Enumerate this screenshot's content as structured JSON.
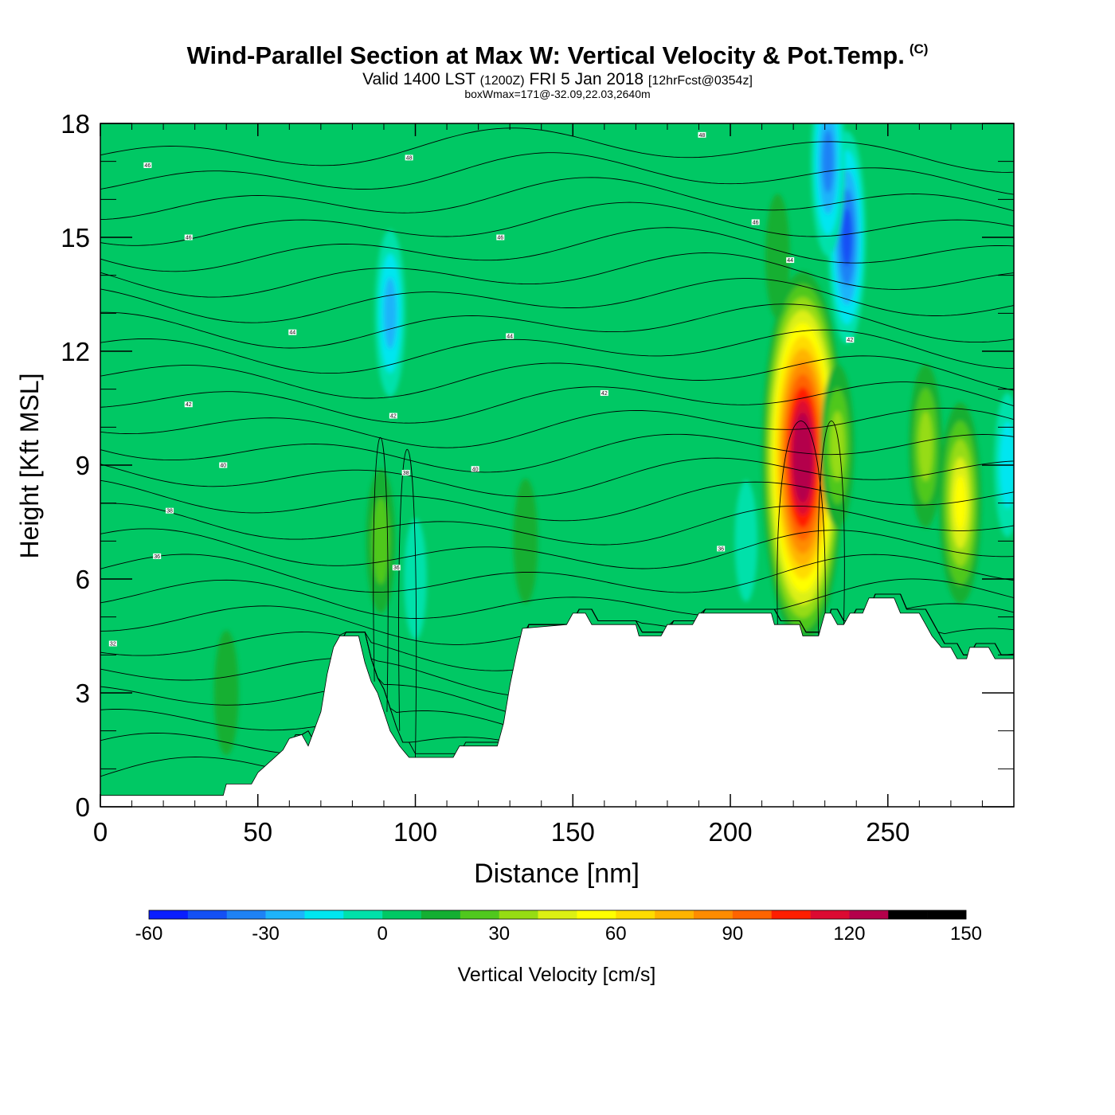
{
  "title": {
    "main": "Wind-Parallel Section at Max W: Vertical Velocity & Pot.Temp.",
    "copyright": "(C)",
    "valid_prefix": "Valid 1400 LST",
    "valid_z": "(1200Z)",
    "valid_date": "FRI 5 Jan 2018",
    "forecast": "[12hrFcst@0354z]",
    "box_wmax": "boxWmax=171@-32.09,22.03,2640m"
  },
  "chart_data": {
    "type": "heatmap",
    "xlabel": "Distance [nm]",
    "ylabel": "Height [Kft MSL]",
    "xlim": [
      0,
      290
    ],
    "ylim": [
      0,
      18
    ],
    "x_ticks": [
      "0",
      "50",
      "100",
      "150",
      "200",
      "250"
    ],
    "y_ticks": [
      "0",
      "3",
      "6",
      "9",
      "12",
      "15",
      "18"
    ],
    "colorbar": {
      "label": "Vertical Velocity [cm/s]",
      "min": -60,
      "max": 150,
      "step": 10,
      "tick_labels": [
        "-60",
        "-30",
        "0",
        "30",
        "60",
        "90",
        "120",
        "150"
      ],
      "colors": [
        "#0a1eff",
        "#1450f5",
        "#1e82f5",
        "#1eb4fa",
        "#00e6f0",
        "#00e1aa",
        "#00c864",
        "#14af32",
        "#50c81e",
        "#96dc14",
        "#dcf014",
        "#ffff00",
        "#ffdc00",
        "#ffb400",
        "#ff8c00",
        "#ff6400",
        "#ff1e00",
        "#dc0a32",
        "#b4004b"
      ]
    },
    "background_value": 5,
    "features": [
      {
        "kind": "updraft",
        "x": 223,
        "y": 9.2,
        "w_max": 150,
        "note": "max core"
      },
      {
        "kind": "updraft",
        "x": 89,
        "y": 7.0,
        "w_max": 30
      },
      {
        "kind": "updraft",
        "x": 273,
        "y": 8.0,
        "w_max": 60
      },
      {
        "kind": "updraft",
        "x": 234,
        "y": 9.5,
        "w_max": 40
      },
      {
        "kind": "updraft",
        "x": 262,
        "y": 9.5,
        "w_max": 40
      },
      {
        "kind": "updraft",
        "x": 215,
        "y": 14.5,
        "w_max": 20
      },
      {
        "kind": "updraft",
        "x": 135,
        "y": 7.0,
        "w_max": 20
      },
      {
        "kind": "updraft",
        "x": 40,
        "y": 3.0,
        "w_max": 20
      },
      {
        "kind": "downdraft",
        "x": 237,
        "y": 15.0,
        "w_max": -50
      },
      {
        "kind": "downdraft",
        "x": 231,
        "y": 17.0,
        "w_max": -40
      },
      {
        "kind": "downdraft",
        "x": 92,
        "y": 13.0,
        "w_max": -25
      },
      {
        "kind": "downdraft",
        "x": 100,
        "y": 6.0,
        "w_max": -10
      },
      {
        "kind": "downdraft",
        "x": 288,
        "y": 9.0,
        "w_max": -20
      },
      {
        "kind": "downdraft",
        "x": 205,
        "y": 7.0,
        "w_max": -10
      }
    ],
    "terrain": [
      [
        0,
        0.3
      ],
      [
        39,
        0.3
      ],
      [
        40,
        0.6
      ],
      [
        48,
        0.6
      ],
      [
        50,
        0.9
      ],
      [
        54,
        1.2
      ],
      [
        58,
        1.5
      ],
      [
        60,
        1.8
      ],
      [
        64,
        1.9
      ],
      [
        66,
        1.6
      ],
      [
        70,
        2.5
      ],
      [
        72,
        3.5
      ],
      [
        74,
        4.2
      ],
      [
        76,
        4.5
      ],
      [
        82,
        4.5
      ],
      [
        84,
        3.8
      ],
      [
        86,
        3.3
      ],
      [
        88,
        3.0
      ],
      [
        90,
        2.5
      ],
      [
        92,
        2.0
      ],
      [
        95,
        1.6
      ],
      [
        98,
        1.3
      ],
      [
        112,
        1.3
      ],
      [
        114,
        1.6
      ],
      [
        126,
        1.6
      ],
      [
        128,
        2.2
      ],
      [
        130,
        3.2
      ],
      [
        132,
        4.0
      ],
      [
        134,
        4.7
      ],
      [
        148,
        4.8
      ],
      [
        150,
        5.1
      ],
      [
        154,
        5.1
      ],
      [
        156,
        4.8
      ],
      [
        170,
        4.8
      ],
      [
        171,
        4.5
      ],
      [
        178,
        4.5
      ],
      [
        180,
        4.8
      ],
      [
        188,
        4.8
      ],
      [
        190,
        5.1
      ],
      [
        213,
        5.1
      ],
      [
        214,
        4.8
      ],
      [
        222,
        4.8
      ],
      [
        223,
        4.5
      ],
      [
        228,
        4.5
      ],
      [
        230,
        5.1
      ],
      [
        232,
        5.1
      ],
      [
        234,
        4.8
      ],
      [
        236,
        4.8
      ],
      [
        238,
        5.1
      ],
      [
        242,
        5.1
      ],
      [
        244,
        5.5
      ],
      [
        252,
        5.5
      ],
      [
        254,
        5.1
      ],
      [
        260,
        5.1
      ],
      [
        262,
        4.8
      ],
      [
        264,
        4.5
      ],
      [
        267,
        4.2
      ],
      [
        270,
        4.2
      ],
      [
        272,
        3.9
      ],
      [
        275,
        3.9
      ],
      [
        276,
        4.2
      ],
      [
        282,
        4.2
      ],
      [
        284,
        3.9
      ],
      [
        290,
        3.9
      ]
    ],
    "theta_label_values": [
      {
        "text": "46",
        "x": 15,
        "y": 16.9
      },
      {
        "text": "46",
        "x": 28,
        "y": 15.0
      },
      {
        "text": "44",
        "x": 61,
        "y": 12.5
      },
      {
        "text": "42",
        "x": 28,
        "y": 10.6
      },
      {
        "text": "40",
        "x": 39,
        "y": 9.0
      },
      {
        "text": "38",
        "x": 22,
        "y": 7.8
      },
      {
        "text": "36",
        "x": 18,
        "y": 6.6
      },
      {
        "text": "32",
        "x": 4,
        "y": 4.3
      },
      {
        "text": "48",
        "x": 98,
        "y": 17.1
      },
      {
        "text": "46",
        "x": 127,
        "y": 15.0
      },
      {
        "text": "44",
        "x": 130,
        "y": 12.4
      },
      {
        "text": "42",
        "x": 93,
        "y": 10.3
      },
      {
        "text": "38",
        "x": 97,
        "y": 8.8
      },
      {
        "text": "40",
        "x": 119,
        "y": 8.9
      },
      {
        "text": "36",
        "x": 94,
        "y": 6.3
      },
      {
        "text": "42",
        "x": 160,
        "y": 10.9
      },
      {
        "text": "48",
        "x": 191,
        "y": 17.7
      },
      {
        "text": "46",
        "x": 208,
        "y": 15.4
      },
      {
        "text": "44",
        "x": 219,
        "y": 14.4
      },
      {
        "text": "42",
        "x": 238,
        "y": 12.3
      },
      {
        "text": "36",
        "x": 197,
        "y": 6.8
      }
    ]
  }
}
